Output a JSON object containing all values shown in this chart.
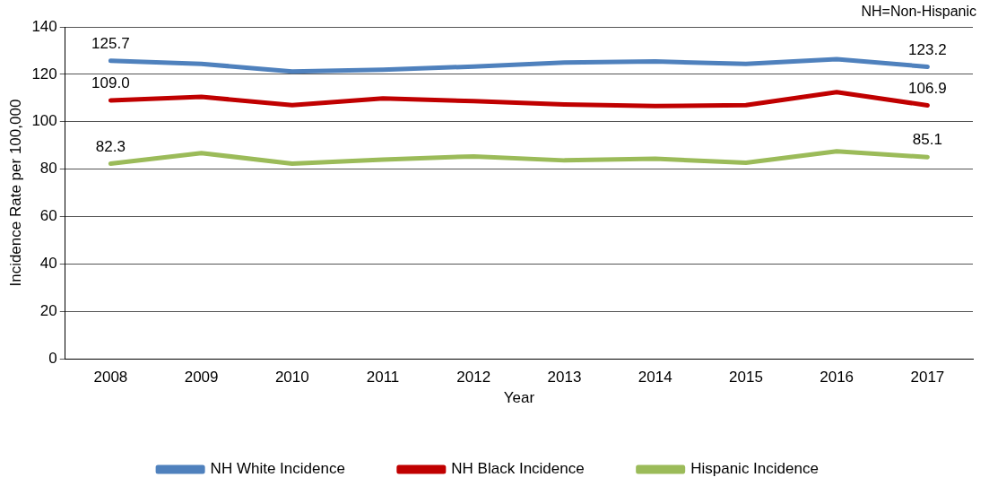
{
  "chart_data": {
    "type": "line",
    "xlabel": "Year",
    "ylabel": "Incidence Rate per 100,000",
    "annotations": [
      "NH=Non-Hispanic"
    ],
    "categories": [
      "2008",
      "2009",
      "2010",
      "2011",
      "2012",
      "2013",
      "2014",
      "2015",
      "2016",
      "2017"
    ],
    "series": [
      {
        "name": "NH White Incidence",
        "color": "#4f81bd",
        "values": [
          125.7,
          124.4,
          121.2,
          121.9,
          123.3,
          125.0,
          125.4,
          124.4,
          126.4,
          123.2
        ],
        "value_labels": [
          "125.7",
          null,
          null,
          null,
          null,
          null,
          null,
          null,
          null,
          "123.2"
        ]
      },
      {
        "name": "NH Black Incidence",
        "color": "#c00000",
        "values": [
          109.0,
          110.5,
          107.0,
          109.8,
          108.7,
          107.3,
          106.6,
          107.0,
          112.5,
          106.9
        ],
        "value_labels": [
          "109.0",
          null,
          null,
          null,
          null,
          null,
          null,
          null,
          null,
          "106.9"
        ]
      },
      {
        "name": "Hispanic Incidence",
        "color": "#9bbb59",
        "values": [
          82.3,
          86.8,
          82.3,
          84.0,
          85.4,
          83.7,
          84.4,
          82.7,
          87.5,
          85.1
        ],
        "value_labels": [
          "82.3",
          null,
          null,
          null,
          null,
          null,
          null,
          null,
          null,
          "85.1"
        ]
      }
    ],
    "ylim": [
      0,
      140
    ],
    "yticks": [
      0,
      20,
      40,
      60,
      80,
      100,
      120,
      140
    ],
    "grid": "y",
    "legend": "bottom",
    "marker": "none",
    "line_style": "solid"
  }
}
